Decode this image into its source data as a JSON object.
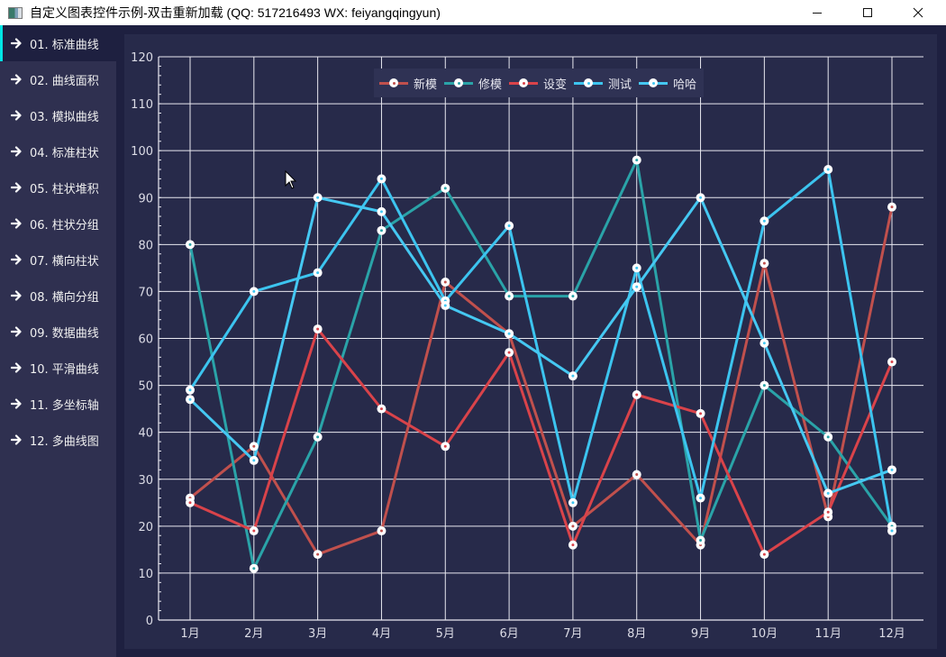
{
  "window": {
    "title": "自定义图表控件示例-双击重新加载 (QQ: 517216493 WX: feiyangqingyun)",
    "controls": [
      "minimize",
      "maximize",
      "close"
    ]
  },
  "sidebar": {
    "items": [
      {
        "label": "01. 标准曲线",
        "active": true
      },
      {
        "label": "02. 曲线面积",
        "active": false
      },
      {
        "label": "03. 模拟曲线",
        "active": false
      },
      {
        "label": "04. 标准柱状",
        "active": false
      },
      {
        "label": "05. 柱状堆积",
        "active": false
      },
      {
        "label": "06. 柱状分组",
        "active": false
      },
      {
        "label": "07. 横向柱状",
        "active": false
      },
      {
        "label": "08. 横向分组",
        "active": false
      },
      {
        "label": "09. 数据曲线",
        "active": false
      },
      {
        "label": "10. 平滑曲线",
        "active": false
      },
      {
        "label": "11. 多坐标轴",
        "active": false
      },
      {
        "label": "12. 多曲线图",
        "active": false
      }
    ],
    "accent_color": "#00e5e5"
  },
  "chart_data": {
    "type": "line",
    "title": "",
    "xlabel": "",
    "ylabel": "",
    "categories": [
      "1月",
      "2月",
      "3月",
      "4月",
      "5月",
      "6月",
      "7月",
      "8月",
      "9月",
      "10月",
      "11月",
      "12月"
    ],
    "ylim": [
      0,
      120
    ],
    "yticks": [
      0,
      10,
      20,
      30,
      40,
      50,
      60,
      70,
      80,
      90,
      100,
      110,
      120
    ],
    "grid": true,
    "legend_position": "top-center",
    "series": [
      {
        "name": "新模",
        "color": "#c0504d",
        "values": [
          26,
          37,
          14,
          19,
          72,
          61,
          20,
          31,
          16,
          76,
          22,
          88
        ]
      },
      {
        "name": "修模",
        "color": "#2aa3a8",
        "values": [
          80,
          11,
          39,
          83,
          92,
          69,
          69,
          98,
          17,
          50,
          39,
          20
        ]
      },
      {
        "name": "设变",
        "color": "#d9434a",
        "values": [
          25,
          19,
          62,
          45,
          37,
          57,
          16,
          48,
          44,
          14,
          23,
          55
        ]
      },
      {
        "name": "测试",
        "color": "#3cc4ef",
        "values": [
          49,
          70,
          74,
          94,
          68,
          84,
          25,
          75,
          26,
          85,
          96,
          19
        ]
      },
      {
        "name": "哈哈",
        "color": "#45c8f2",
        "values": [
          47,
          34,
          90,
          87,
          67,
          61,
          52,
          71,
          90,
          59,
          27,
          32
        ]
      }
    ]
  }
}
